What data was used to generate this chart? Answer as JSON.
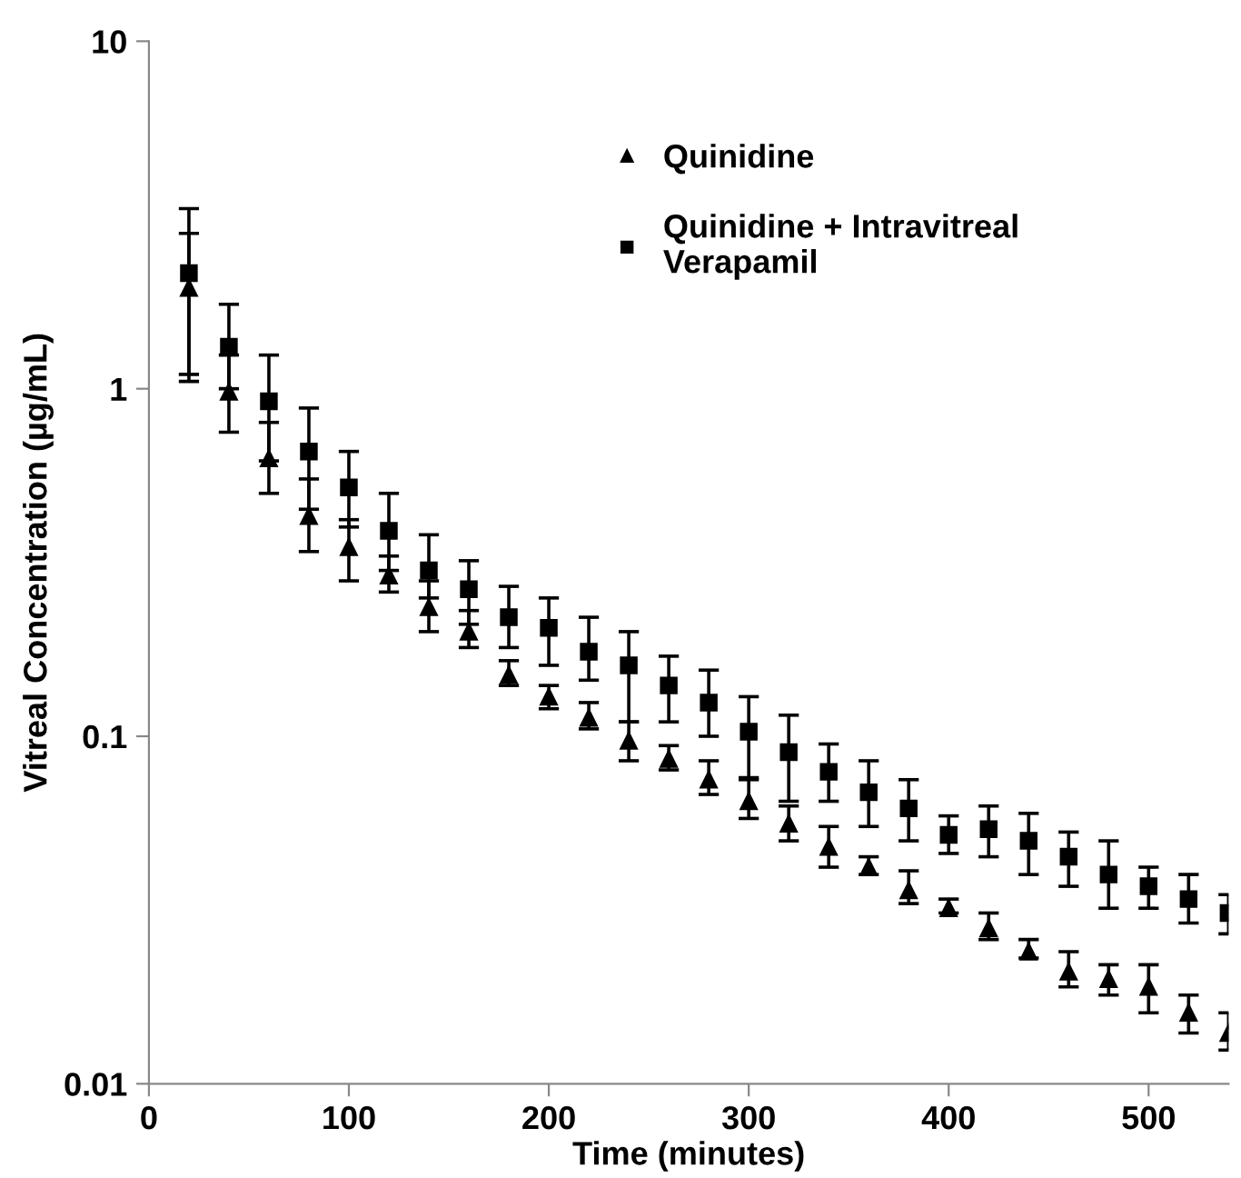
{
  "chart_data": {
    "type": "scatter",
    "xlabel": "Time (minutes)",
    "ylabel": "Vitreal Concentration (µg/mL)",
    "x": [
      20,
      40,
      60,
      80,
      100,
      120,
      140,
      160,
      180,
      200,
      220,
      240,
      260,
      280,
      300,
      320,
      340,
      360,
      380,
      400,
      420,
      440,
      460,
      480,
      500,
      520,
      540
    ],
    "series": [
      {
        "name": "Quinidine",
        "color": "#000000",
        "marker": "triangle",
        "values": [
          1.95,
          0.98,
          0.63,
          0.43,
          0.35,
          0.29,
          0.235,
          0.2,
          0.15,
          0.13,
          0.113,
          0.097,
          0.086,
          0.075,
          0.065,
          0.056,
          0.048,
          0.042,
          0.036,
          0.032,
          0.028,
          0.024,
          0.021,
          0.02,
          0.019,
          0.016,
          0.014
        ],
        "errors": [
          [
            1.05,
            2.8
          ],
          [
            0.75,
            1.25
          ],
          [
            0.5,
            0.8
          ],
          [
            0.34,
            0.55
          ],
          [
            0.28,
            0.42
          ],
          [
            0.26,
            0.33
          ],
          [
            0.2,
            0.28
          ],
          [
            0.18,
            0.23
          ],
          [
            0.14,
            0.165
          ],
          [
            0.12,
            0.14
          ],
          [
            0.105,
            0.125
          ],
          [
            0.085,
            0.11
          ],
          [
            0.08,
            0.094
          ],
          [
            0.068,
            0.085
          ],
          [
            0.058,
            0.076
          ],
          [
            0.05,
            0.063
          ],
          [
            0.042,
            0.055
          ],
          [
            0.04,
            0.045
          ],
          [
            0.033,
            0.041
          ],
          [
            0.031,
            0.034
          ],
          [
            0.026,
            0.031
          ],
          [
            0.023,
            0.026
          ],
          [
            0.019,
            0.024
          ],
          [
            0.018,
            0.022
          ],
          [
            0.016,
            0.022
          ],
          [
            0.014,
            0.018
          ],
          [
            0.0125,
            0.016
          ]
        ]
      },
      {
        "name": "Quinidine + Intravitreal\nVerapamil",
        "color": "#000000",
        "marker": "square",
        "values": [
          2.15,
          1.32,
          0.92,
          0.66,
          0.52,
          0.39,
          0.3,
          0.265,
          0.22,
          0.205,
          0.175,
          0.16,
          0.14,
          0.125,
          0.103,
          0.09,
          0.079,
          0.069,
          0.062,
          0.052,
          0.054,
          0.05,
          0.045,
          0.04,
          0.037,
          0.034,
          0.031
        ],
        "errors": [
          [
            1.1,
            3.3
          ],
          [
            1.0,
            1.75
          ],
          [
            0.62,
            1.25
          ],
          [
            0.45,
            0.88
          ],
          [
            0.4,
            0.66
          ],
          [
            0.3,
            0.5
          ],
          [
            0.25,
            0.38
          ],
          [
            0.21,
            0.32
          ],
          [
            0.18,
            0.27
          ],
          [
            0.16,
            0.25
          ],
          [
            0.145,
            0.22
          ],
          [
            0.11,
            0.2
          ],
          [
            0.11,
            0.17
          ],
          [
            0.1,
            0.155
          ],
          [
            0.075,
            0.13
          ],
          [
            0.065,
            0.115
          ],
          [
            0.065,
            0.095
          ],
          [
            0.055,
            0.085
          ],
          [
            0.05,
            0.075
          ],
          [
            0.046,
            0.059
          ],
          [
            0.045,
            0.063
          ],
          [
            0.04,
            0.06
          ],
          [
            0.037,
            0.053
          ],
          [
            0.032,
            0.05
          ],
          [
            0.032,
            0.042
          ],
          [
            0.029,
            0.04
          ],
          [
            0.027,
            0.035
          ]
        ]
      }
    ],
    "log": "y",
    "xlim": [
      0,
      540
    ],
    "ylim": [
      0.01,
      10
    ],
    "xticks": [
      0,
      100,
      200,
      300,
      400,
      500
    ],
    "yticks": [
      0.01,
      0.1,
      1,
      10
    ],
    "grid": false,
    "legend": "top"
  }
}
